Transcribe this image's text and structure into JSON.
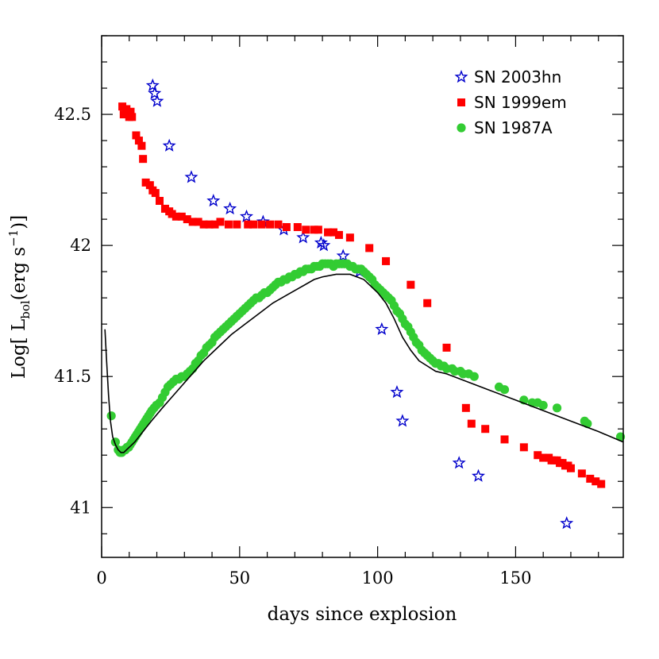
{
  "chart_data": {
    "type": "scatter",
    "xlabel": "days since explosion",
    "ylabel": {
      "prefix": "Log[ L",
      "sub": "bol",
      "mid": "(erg s",
      "sup": "−1",
      "suffix": ")]"
    },
    "xlim": [
      0,
      189
    ],
    "ylim": [
      40.81,
      42.8
    ],
    "xticks": [
      0,
      50,
      100,
      150
    ],
    "yticks": [
      41,
      41.5,
      42,
      42.5
    ],
    "ytick_labels": [
      "41",
      "41.5",
      "42",
      "42.5"
    ],
    "grid": false,
    "legend_placement": "top-right",
    "series": [
      {
        "name": "SN 2003hn",
        "marker": "star",
        "color": "#0000cc",
        "points": [
          [
            18.5,
            42.61
          ],
          [
            19.2,
            42.58
          ],
          [
            20.1,
            42.55
          ],
          [
            24.5,
            42.38
          ],
          [
            32.5,
            42.26
          ],
          [
            40.5,
            42.17
          ],
          [
            46.5,
            42.14
          ],
          [
            52.5,
            42.11
          ],
          [
            58.5,
            42.09
          ],
          [
            66,
            42.06
          ],
          [
            73,
            42.03
          ],
          [
            79.5,
            42.01
          ],
          [
            80.5,
            42.0
          ],
          [
            87.5,
            41.96
          ],
          [
            93.5,
            41.9
          ],
          [
            101.5,
            41.68
          ],
          [
            107,
            41.44
          ],
          [
            109,
            41.33
          ],
          [
            129.5,
            41.17
          ],
          [
            136.5,
            41.12
          ],
          [
            168.5,
            40.94
          ]
        ]
      },
      {
        "name": "SN 1999em",
        "marker": "square",
        "color": "#ff0000",
        "points": [
          [
            7.5,
            42.53
          ],
          [
            8,
            42.5
          ],
          [
            9,
            42.52
          ],
          [
            10,
            42.49
          ],
          [
            10.5,
            42.51
          ],
          [
            11,
            42.49
          ],
          [
            12.5,
            42.42
          ],
          [
            13.5,
            42.4
          ],
          [
            14.5,
            42.38
          ],
          [
            15,
            42.33
          ],
          [
            16,
            42.24
          ],
          [
            17.5,
            42.23
          ],
          [
            18.5,
            42.21
          ],
          [
            19.5,
            42.2
          ],
          [
            21,
            42.17
          ],
          [
            23,
            42.14
          ],
          [
            24.5,
            42.13
          ],
          [
            25.5,
            42.12
          ],
          [
            27,
            42.11
          ],
          [
            29,
            42.11
          ],
          [
            31,
            42.1
          ],
          [
            33,
            42.09
          ],
          [
            35,
            42.09
          ],
          [
            37,
            42.08
          ],
          [
            39,
            42.08
          ],
          [
            41,
            42.08
          ],
          [
            43,
            42.09
          ],
          [
            46,
            42.08
          ],
          [
            49,
            42.08
          ],
          [
            53,
            42.08
          ],
          [
            55,
            42.08
          ],
          [
            58,
            42.08
          ],
          [
            61,
            42.08
          ],
          [
            64,
            42.08
          ],
          [
            67,
            42.07
          ],
          [
            71,
            42.07
          ],
          [
            74,
            42.06
          ],
          [
            77,
            42.06
          ],
          [
            78.5,
            42.06
          ],
          [
            82,
            42.05
          ],
          [
            84,
            42.05
          ],
          [
            86,
            42.04
          ],
          [
            90,
            42.03
          ],
          [
            97,
            41.99
          ],
          [
            103,
            41.94
          ],
          [
            112,
            41.85
          ],
          [
            118,
            41.78
          ],
          [
            125,
            41.61
          ],
          [
            132,
            41.38
          ],
          [
            134,
            41.32
          ],
          [
            139,
            41.3
          ],
          [
            146,
            41.26
          ],
          [
            153,
            41.23
          ],
          [
            158,
            41.2
          ],
          [
            160,
            41.19
          ],
          [
            162,
            41.19
          ],
          [
            163,
            41.18
          ],
          [
            164,
            41.18
          ],
          [
            165,
            41.18
          ],
          [
            166,
            41.17
          ],
          [
            167,
            41.17
          ],
          [
            168,
            41.16
          ],
          [
            169,
            41.16
          ],
          [
            170,
            41.15
          ],
          [
            174,
            41.13
          ],
          [
            177,
            41.11
          ],
          [
            179,
            41.1
          ],
          [
            181,
            41.09
          ]
        ]
      },
      {
        "name": "SN 1987A",
        "marker": "circle",
        "color": "#33cc33",
        "points": [
          [
            3.5,
            41.35
          ],
          [
            5,
            41.25
          ],
          [
            6,
            41.22
          ],
          [
            6.7,
            41.21
          ],
          [
            7.3,
            41.21
          ],
          [
            8,
            41.22
          ],
          [
            8.6,
            41.22
          ],
          [
            9.2,
            41.23
          ],
          [
            9.8,
            41.23
          ],
          [
            10.4,
            41.24
          ],
          [
            11,
            41.25
          ],
          [
            11.6,
            41.26
          ],
          [
            12.2,
            41.27
          ],
          [
            12.8,
            41.28
          ],
          [
            13.4,
            41.29
          ],
          [
            14,
            41.3
          ],
          [
            14.6,
            41.31
          ],
          [
            15.2,
            41.32
          ],
          [
            15.8,
            41.33
          ],
          [
            16.4,
            41.34
          ],
          [
            17,
            41.35
          ],
          [
            17.6,
            41.36
          ],
          [
            18.2,
            41.37
          ],
          [
            19,
            41.38
          ],
          [
            19.8,
            41.39
          ],
          [
            21,
            41.4
          ],
          [
            22,
            41.42
          ],
          [
            23,
            41.44
          ],
          [
            24,
            41.46
          ],
          [
            25,
            41.47
          ],
          [
            26,
            41.48
          ],
          [
            27,
            41.49
          ],
          [
            28,
            41.49
          ],
          [
            29,
            41.5
          ],
          [
            30,
            41.5
          ],
          [
            31,
            41.51
          ],
          [
            32,
            41.52
          ],
          [
            33,
            41.53
          ],
          [
            34,
            41.55
          ],
          [
            35,
            41.56
          ],
          [
            36,
            41.58
          ],
          [
            37,
            41.59
          ],
          [
            38,
            41.61
          ],
          [
            39,
            41.62
          ],
          [
            40,
            41.63
          ],
          [
            41,
            41.65
          ],
          [
            42,
            41.66
          ],
          [
            43,
            41.67
          ],
          [
            44,
            41.68
          ],
          [
            45,
            41.69
          ],
          [
            46,
            41.7
          ],
          [
            47,
            41.71
          ],
          [
            48,
            41.72
          ],
          [
            49,
            41.73
          ],
          [
            50,
            41.74
          ],
          [
            51,
            41.75
          ],
          [
            52,
            41.76
          ],
          [
            53,
            41.77
          ],
          [
            54,
            41.78
          ],
          [
            55,
            41.79
          ],
          [
            56,
            41.8
          ],
          [
            57,
            41.8
          ],
          [
            58,
            41.81
          ],
          [
            59,
            41.82
          ],
          [
            60,
            41.82
          ],
          [
            61,
            41.83
          ],
          [
            62,
            41.84
          ],
          [
            63,
            41.85
          ],
          [
            64,
            41.86
          ],
          [
            65,
            41.86
          ],
          [
            66,
            41.87
          ],
          [
            67,
            41.87
          ],
          [
            68,
            41.88
          ],
          [
            69,
            41.88
          ],
          [
            70,
            41.89
          ],
          [
            71,
            41.89
          ],
          [
            72,
            41.9
          ],
          [
            73,
            41.9
          ],
          [
            74,
            41.91
          ],
          [
            75,
            41.91
          ],
          [
            76,
            41.91
          ],
          [
            77,
            41.92
          ],
          [
            78,
            41.92
          ],
          [
            79,
            41.92
          ],
          [
            80,
            41.93
          ],
          [
            81,
            41.93
          ],
          [
            82,
            41.93
          ],
          [
            83,
            41.93
          ],
          [
            84,
            41.92
          ],
          [
            85,
            41.93
          ],
          [
            86,
            41.93
          ],
          [
            87,
            41.93
          ],
          [
            88,
            41.93
          ],
          [
            89,
            41.93
          ],
          [
            90,
            41.92
          ],
          [
            91,
            41.92
          ],
          [
            92,
            41.91
          ],
          [
            93,
            41.91
          ],
          [
            94,
            41.91
          ],
          [
            95,
            41.9
          ],
          [
            96,
            41.89
          ],
          [
            97,
            41.88
          ],
          [
            98,
            41.87
          ],
          [
            99,
            41.85
          ],
          [
            100,
            41.84
          ],
          [
            101,
            41.83
          ],
          [
            102,
            41.82
          ],
          [
            103,
            41.81
          ],
          [
            104,
            41.8
          ],
          [
            105,
            41.79
          ],
          [
            106,
            41.77
          ],
          [
            107,
            41.75
          ],
          [
            108,
            41.74
          ],
          [
            109,
            41.72
          ],
          [
            110,
            41.7
          ],
          [
            111,
            41.69
          ],
          [
            112,
            41.67
          ],
          [
            113,
            41.65
          ],
          [
            114,
            41.63
          ],
          [
            115,
            41.62
          ],
          [
            116,
            41.6
          ],
          [
            117,
            41.59
          ],
          [
            118,
            41.58
          ],
          [
            119,
            41.57
          ],
          [
            120,
            41.56
          ],
          [
            121,
            41.55
          ],
          [
            122,
            41.55
          ],
          [
            123,
            41.54
          ],
          [
            124,
            41.54
          ],
          [
            125,
            41.53
          ],
          [
            127,
            41.53
          ],
          [
            128,
            41.52
          ],
          [
            130,
            41.52
          ],
          [
            131,
            41.51
          ],
          [
            133,
            41.51
          ],
          [
            135,
            41.5
          ],
          [
            144,
            41.46
          ],
          [
            146,
            41.45
          ],
          [
            153,
            41.41
          ],
          [
            156,
            41.4
          ],
          [
            158,
            41.4
          ],
          [
            160,
            41.39
          ],
          [
            165,
            41.38
          ],
          [
            175,
            41.33
          ],
          [
            176,
            41.32
          ],
          [
            188,
            41.27
          ]
        ]
      },
      {
        "name": "",
        "marker": "line",
        "color": "#000000",
        "points": [
          [
            1.2,
            41.68
          ],
          [
            1.8,
            41.56
          ],
          [
            2.5,
            41.43
          ],
          [
            3.2,
            41.33
          ],
          [
            4,
            41.27
          ],
          [
            5,
            41.24
          ],
          [
            6,
            41.22
          ],
          [
            7,
            41.21
          ],
          [
            8,
            41.21
          ],
          [
            9,
            41.22
          ],
          [
            10,
            41.23
          ],
          [
            12,
            41.25
          ],
          [
            15,
            41.29
          ],
          [
            18,
            41.33
          ],
          [
            22,
            41.38
          ],
          [
            27,
            41.44
          ],
          [
            32,
            41.5
          ],
          [
            37,
            41.56
          ],
          [
            42,
            41.61
          ],
          [
            47,
            41.66
          ],
          [
            52,
            41.7
          ],
          [
            57,
            41.74
          ],
          [
            62,
            41.78
          ],
          [
            67,
            41.81
          ],
          [
            72,
            41.84
          ],
          [
            77,
            41.87
          ],
          [
            80,
            41.88
          ],
          [
            85,
            41.89
          ],
          [
            90,
            41.89
          ],
          [
            95,
            41.87
          ],
          [
            100,
            41.82
          ],
          [
            103,
            41.78
          ],
          [
            106,
            41.72
          ],
          [
            109,
            41.65
          ],
          [
            112,
            41.6
          ],
          [
            115,
            41.56
          ],
          [
            118,
            41.54
          ],
          [
            121,
            41.52
          ],
          [
            125,
            41.51
          ],
          [
            130,
            41.49
          ],
          [
            140,
            41.45
          ],
          [
            150,
            41.41
          ],
          [
            160,
            41.37
          ],
          [
            170,
            41.33
          ],
          [
            180,
            41.29
          ],
          [
            189,
            41.25
          ]
        ]
      }
    ]
  }
}
